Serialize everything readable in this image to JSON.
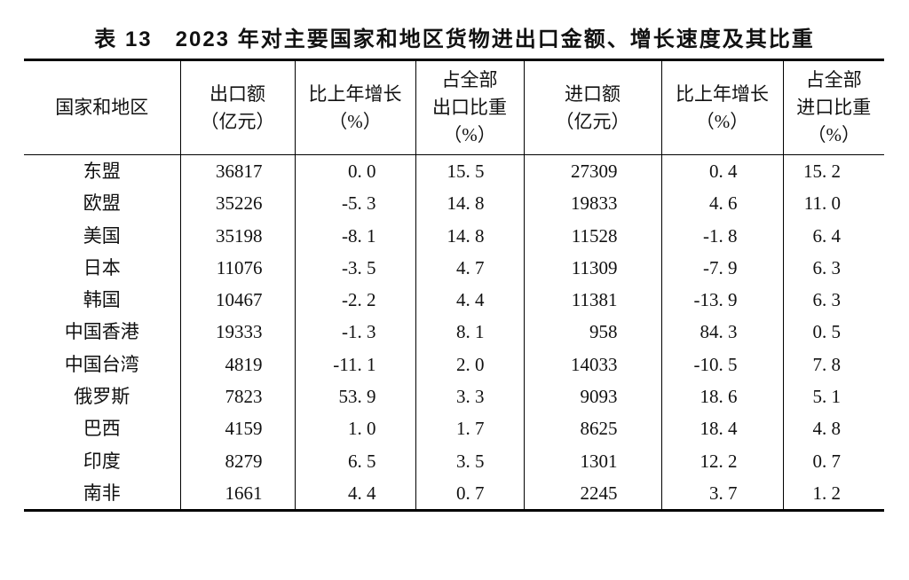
{
  "colors": {
    "background": "#ffffff",
    "text": "#111111",
    "rule": "#000000"
  },
  "table": {
    "title": "表 13　2023 年对主要国家和地区货物进出口金额、增长速度及其比重",
    "columns": [
      {
        "id": "region",
        "label": "国家和地区"
      },
      {
        "id": "export_value",
        "label": "出口额\n（亿元）"
      },
      {
        "id": "export_growth",
        "label": "比上年增长\n（%）"
      },
      {
        "id": "export_share",
        "label": "占全部\n出口比重\n（%）"
      },
      {
        "id": "import_value",
        "label": "进口额\n（亿元）"
      },
      {
        "id": "import_growth",
        "label": "比上年增长\n（%）"
      },
      {
        "id": "import_share",
        "label": "占全部\n进口比重\n（%）"
      }
    ],
    "rows": [
      [
        "东盟",
        "36817",
        "0. 0",
        "15. 5",
        "27309",
        "0. 4",
        "15. 2"
      ],
      [
        "欧盟",
        "35226",
        "-5. 3",
        "14. 8",
        "19833",
        "4. 6",
        "11. 0"
      ],
      [
        "美国",
        "35198",
        "-8. 1",
        "14. 8",
        "11528",
        "-1. 8",
        "6. 4"
      ],
      [
        "日本",
        "11076",
        "-3. 5",
        "4. 7",
        "11309",
        "-7. 9",
        "6. 3"
      ],
      [
        "韩国",
        "10467",
        "-2. 2",
        "4. 4",
        "11381",
        "-13. 9",
        "6. 3"
      ],
      [
        "中国香港",
        "19333",
        "-1. 3",
        "8. 1",
        "958",
        "84. 3",
        "0. 5"
      ],
      [
        "中国台湾",
        "4819",
        "-11. 1",
        "2. 0",
        "14033",
        "-10. 5",
        "7. 8"
      ],
      [
        "俄罗斯",
        "7823",
        "53. 9",
        "3. 3",
        "9093",
        "18. 6",
        "5. 1"
      ],
      [
        "巴西",
        "4159",
        "1. 0",
        "1. 7",
        "8625",
        "18. 4",
        "4. 8"
      ],
      [
        "印度",
        "8279",
        "6. 5",
        "3. 5",
        "1301",
        "12. 2",
        "0. 7"
      ],
      [
        "南非",
        "1661",
        "4. 4",
        "0. 7",
        "2245",
        "3. 7",
        "1. 2"
      ]
    ]
  },
  "chart_data": {
    "type": "table",
    "title": "表13 2023年对主要国家和地区货物进出口金额、增长速度及其比重",
    "columns": [
      "国家和地区",
      "出口额（亿元）",
      "比上年增长（%）",
      "占全部出口比重（%）",
      "进口额（亿元）",
      "比上年增长（%）",
      "占全部进口比重（%）"
    ],
    "rows": [
      [
        "东盟",
        36817,
        0.0,
        15.5,
        27309,
        0.4,
        15.2
      ],
      [
        "欧盟",
        35226,
        -5.3,
        14.8,
        19833,
        4.6,
        11.0
      ],
      [
        "美国",
        35198,
        -8.1,
        14.8,
        11528,
        -1.8,
        6.4
      ],
      [
        "日本",
        11076,
        -3.5,
        4.7,
        11309,
        -7.9,
        6.3
      ],
      [
        "韩国",
        10467,
        -2.2,
        4.4,
        11381,
        -13.9,
        6.3
      ],
      [
        "中国香港",
        19333,
        -1.3,
        8.1,
        958,
        84.3,
        0.5
      ],
      [
        "中国台湾",
        4819,
        -11.1,
        2.0,
        14033,
        -10.5,
        7.8
      ],
      [
        "俄罗斯",
        7823,
        53.9,
        3.3,
        9093,
        18.6,
        5.1
      ],
      [
        "巴西",
        4159,
        1.0,
        1.7,
        8625,
        18.4,
        4.8
      ],
      [
        "印度",
        8279,
        6.5,
        3.5,
        1301,
        12.2,
        0.7
      ],
      [
        "南非",
        1661,
        4.4,
        0.7,
        2245,
        3.7,
        1.2
      ]
    ]
  }
}
